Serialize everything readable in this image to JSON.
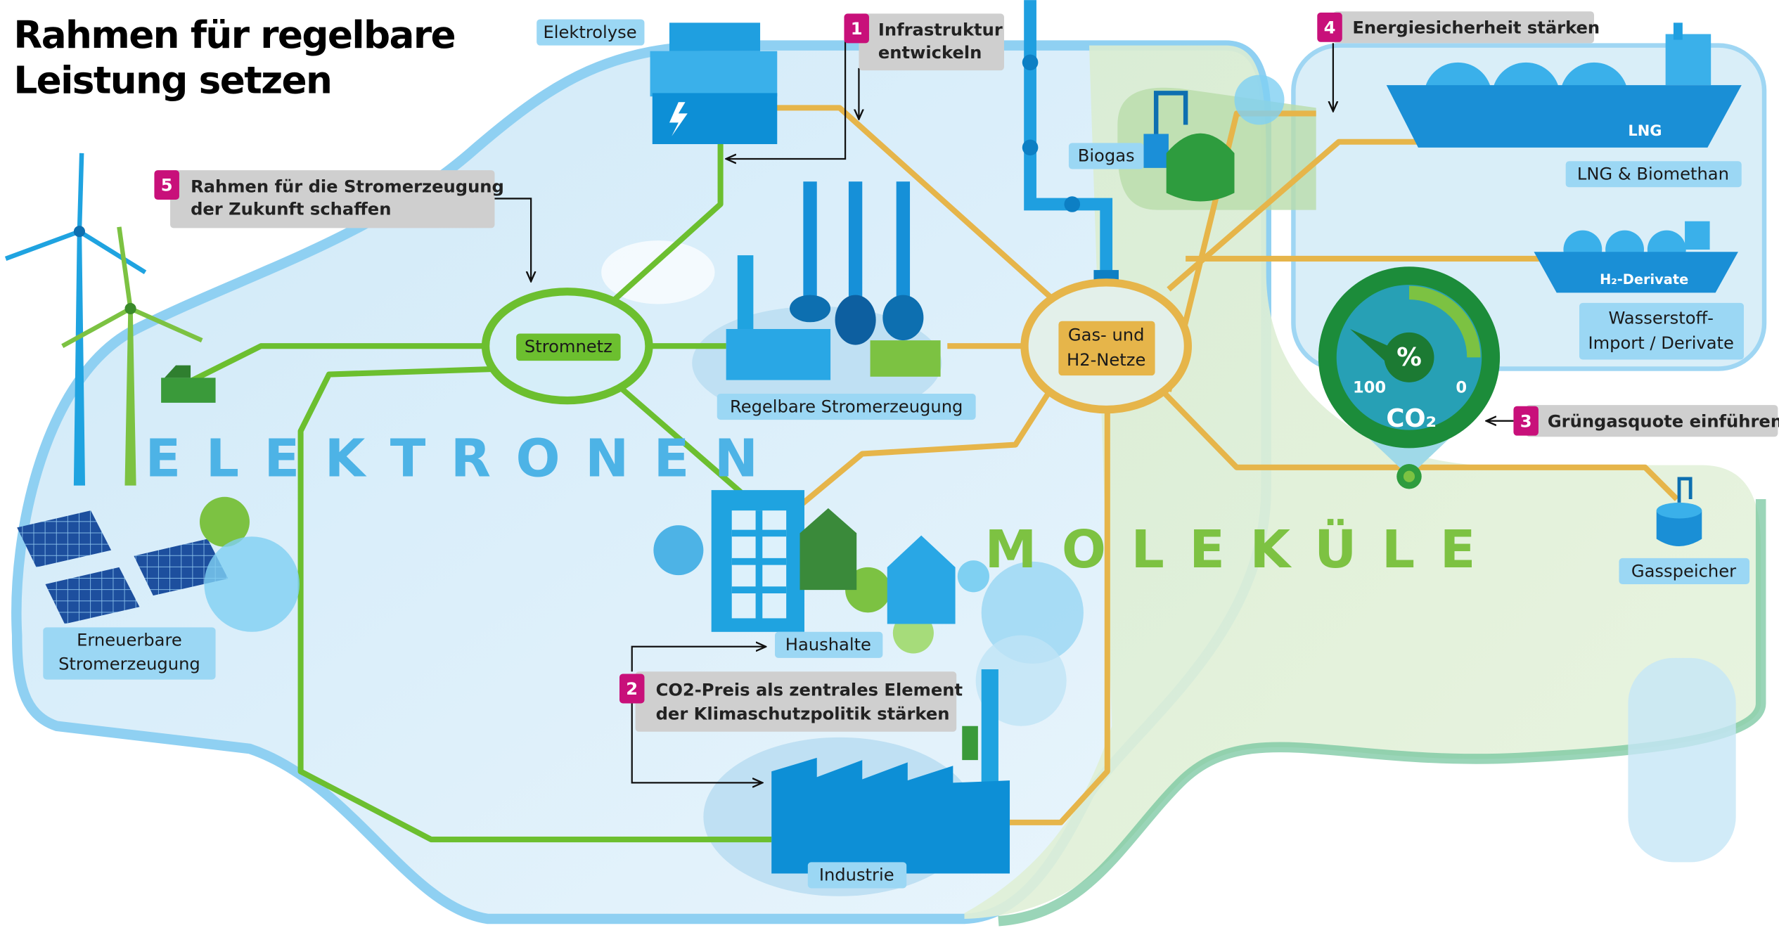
{
  "header": {
    "title": [
      "Rahmen für regelbare",
      "Leistung setzen"
    ]
  },
  "regions": {
    "electrons": "ELEKTRONEN",
    "molecules": "MOLEKÜLE"
  },
  "hubs": [
    {
      "label": [
        "Stromnetz"
      ]
    },
    {
      "label": [
        "Gas- und",
        "H2-Netze"
      ]
    }
  ],
  "nodes": [
    {
      "label": [
        "Elektrolyse"
      ]
    },
    {
      "label": [
        "Regelbare Stromerzeugung"
      ]
    },
    {
      "label": [
        "Erneuerbare",
        "Stromerzeugung"
      ]
    },
    {
      "label": [
        "Haushalte"
      ]
    },
    {
      "label": [
        "Industrie"
      ]
    },
    {
      "label": [
        "Biogas"
      ]
    },
    {
      "label": [
        "LNG & Biomethan"
      ]
    },
    {
      "label": [
        "Wasserstoff-",
        "Import / Derivate"
      ]
    },
    {
      "label": [
        "Gasspeicher"
      ]
    }
  ],
  "ships": [
    "LNG",
    "H₂-Derivate"
  ],
  "gauge": {
    "symbol": "%",
    "left": "100",
    "right": "0",
    "gas": "CO₂"
  },
  "measures": [
    {
      "number": "1",
      "text": [
        "Infrastruktur",
        "entwickeln"
      ]
    },
    {
      "number": "2",
      "text": [
        "CO2-Preis als zentrales Element",
        "der Klimaschutzpolitik stärken"
      ]
    },
    {
      "number": "3",
      "text": [
        "Grüngasquote einführen"
      ]
    },
    {
      "number": "4",
      "text": [
        "Energiesicherheit stärken"
      ]
    },
    {
      "number": "5",
      "text": [
        "Rahmen für die Stromerzeugung",
        "der Zukunft schaffen"
      ]
    }
  ]
}
